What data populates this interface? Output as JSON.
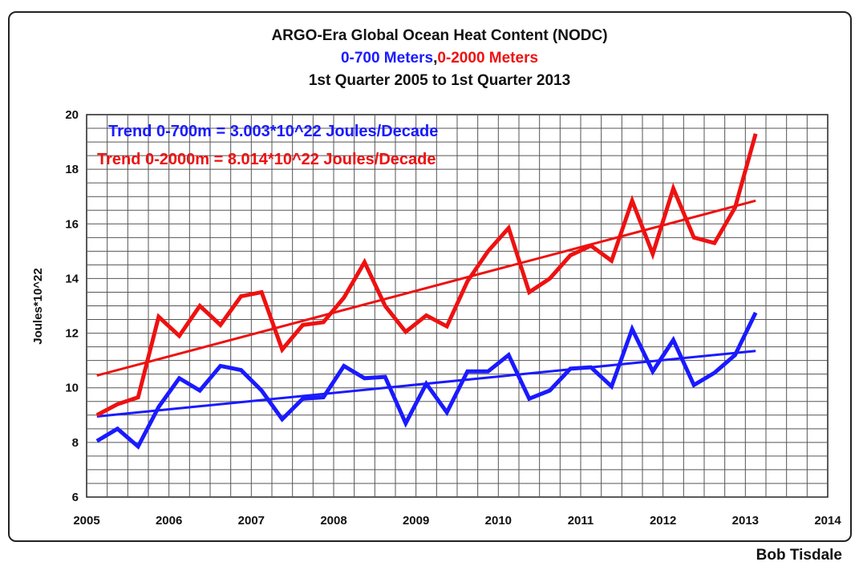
{
  "chart_data": {
    "type": "line",
    "title_line1": "ARGO-Era Global Ocean Heat Content (NODC)",
    "title_line2_part1": "0-700 Meters",
    "title_line2_sep": ",",
    "title_line2_part2": "0-2000 Meters",
    "title_line3": "1st Quarter 2005 to 1st Quarter 2013",
    "ylabel": "Joules*10^22",
    "xlabel": "",
    "xlim": [
      2005,
      2014
    ],
    "ylim": [
      6,
      20
    ],
    "xticks": [
      "2005",
      "2006",
      "2007",
      "2008",
      "2009",
      "2010",
      "2011",
      "2012",
      "2013",
      "2014"
    ],
    "yticks": [
      "6",
      "8",
      "10",
      "12",
      "14",
      "16",
      "18",
      "20"
    ],
    "grid": true,
    "x": [
      2005.125,
      2005.375,
      2005.625,
      2005.875,
      2006.125,
      2006.375,
      2006.625,
      2006.875,
      2007.125,
      2007.375,
      2007.625,
      2007.875,
      2008.125,
      2008.375,
      2008.625,
      2008.875,
      2009.125,
      2009.375,
      2009.625,
      2009.875,
      2010.125,
      2010.375,
      2010.625,
      2010.875,
      2011.125,
      2011.375,
      2011.625,
      2011.875,
      2012.125,
      2012.375,
      2012.625,
      2012.875,
      2013.125
    ],
    "series": [
      {
        "name": "0-700 Meters",
        "color": "#1a1aff",
        "values": [
          8.05,
          8.5,
          7.85,
          9.3,
          10.35,
          9.9,
          10.8,
          10.65,
          9.9,
          8.85,
          9.6,
          9.65,
          10.8,
          10.35,
          10.4,
          8.7,
          10.15,
          9.1,
          10.6,
          10.6,
          11.2,
          9.6,
          9.9,
          10.7,
          10.75,
          10.05,
          12.15,
          10.6,
          11.75,
          10.1,
          10.55,
          11.2,
          12.75
        ]
      },
      {
        "name": "0-2000 Meters",
        "color": "#ee1111",
        "values": [
          9.0,
          9.4,
          9.65,
          12.6,
          11.9,
          13.0,
          12.3,
          13.35,
          13.5,
          11.4,
          12.3,
          12.4,
          13.3,
          14.6,
          13.0,
          12.05,
          12.65,
          12.25,
          13.9,
          15.0,
          15.85,
          13.5,
          14.0,
          14.85,
          15.2,
          14.65,
          16.85,
          14.9,
          17.3,
          15.5,
          15.3,
          16.6,
          19.3
        ]
      }
    ],
    "trends": [
      {
        "label": "Trend 0-700m = 3.003*10^22 Joules/Decade",
        "color": "#1a1aff",
        "x": [
          2005.125,
          2013.125
        ],
        "y": [
          8.95,
          11.35
        ]
      },
      {
        "label": "Trend 0-2000m = 8.014*10^22 Joules/Decade",
        "color": "#ee1111",
        "x": [
          2005.125,
          2013.125
        ],
        "y": [
          10.45,
          16.85
        ]
      }
    ],
    "colors": {
      "blue": "#1a1aff",
      "red": "#ee1111",
      "grid": "#555555"
    }
  },
  "author": "Bob Tisdale"
}
